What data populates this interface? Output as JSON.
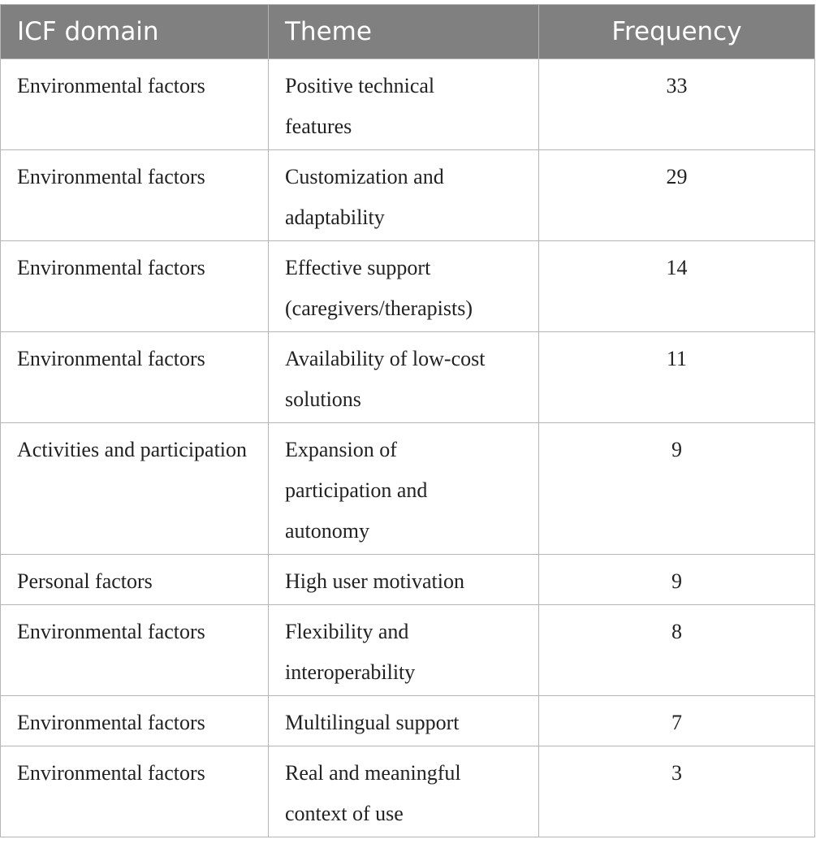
{
  "table": {
    "header": [
      "ICF domain",
      "Theme",
      "Frequency"
    ],
    "rows": [
      [
        "Environmental factors",
        "Positive technical features",
        33
      ],
      [
        "Environmental factors",
        "Customization and adaptability",
        29
      ],
      [
        "Environmental factors",
        "Effective support (caregivers/therapists)",
        14
      ],
      [
        "Environmental factors",
        "Availability of low-cost solutions",
        11
      ],
      [
        "Activities and participation",
        "Expansion of participation and autonomy",
        9
      ],
      [
        "Personal factors",
        "High user motivation",
        9
      ],
      [
        "Environmental factors",
        "Flexibility and interoperability",
        8
      ],
      [
        "Environmental factors",
        "Multilingual support",
        7
      ],
      [
        "Environmental factors",
        "Real and meaningful context of use",
        3
      ]
    ]
  }
}
